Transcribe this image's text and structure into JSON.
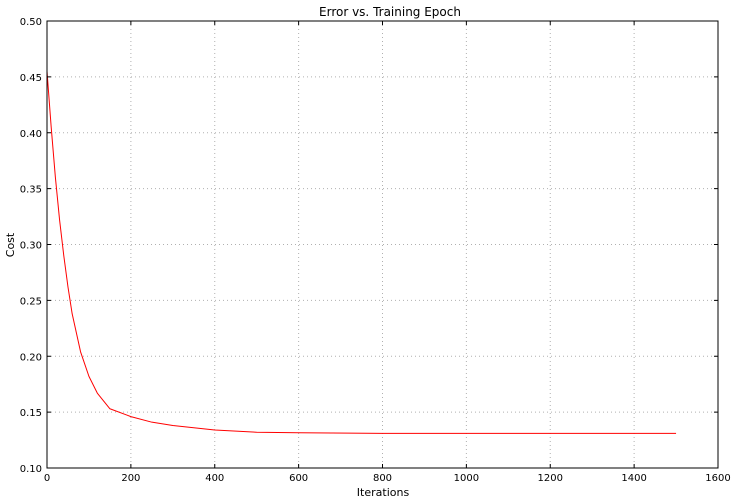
{
  "chart_data": {
    "type": "line",
    "title": "Error vs. Training Epoch",
    "xlabel": "Iterations",
    "ylabel": "Cost",
    "xlim": [
      0,
      1600
    ],
    "ylim": [
      0.1,
      0.5
    ],
    "xticks": [
      "0",
      "200",
      "400",
      "600",
      "800",
      "1000",
      "1200",
      "1400",
      "1600"
    ],
    "yticks": [
      "0.10",
      "0.15",
      "0.20",
      "0.25",
      "0.30",
      "0.35",
      "0.40",
      "0.45",
      "0.50"
    ],
    "grid": true,
    "legend": "none",
    "series": [
      {
        "color": "#ff0000",
        "x": [
          0,
          10,
          20,
          30,
          40,
          50,
          60,
          80,
          100,
          120,
          150,
          200,
          250,
          300,
          400,
          500,
          600,
          800,
          1000,
          1200,
          1400,
          1500
        ],
        "y": [
          0.455,
          0.405,
          0.36,
          0.322,
          0.29,
          0.262,
          0.238,
          0.204,
          0.182,
          0.167,
          0.153,
          0.146,
          0.141,
          0.138,
          0.134,
          0.132,
          0.1315,
          0.131,
          0.131,
          0.131,
          0.131,
          0.131
        ]
      }
    ]
  }
}
